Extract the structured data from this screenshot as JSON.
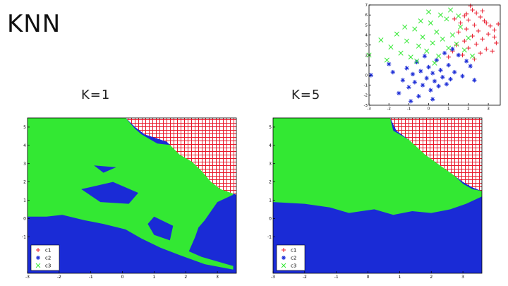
{
  "slide": {
    "title": "KNN",
    "k1_label": "K=1",
    "k5_label": "K=5"
  },
  "colors": {
    "c1": "#e8182a",
    "c2": "#1a2bd6",
    "c3": "#33e833"
  },
  "legend": {
    "items": [
      "c1",
      "c2",
      "c3"
    ],
    "placement": "bottom-left"
  },
  "chart_data": [
    {
      "type": "scatter",
      "xlim": [
        -3,
        3.6
      ],
      "ylim": [
        -3,
        7
      ],
      "xticks": [
        "-3",
        "-2",
        "-1",
        "0",
        "1",
        "2",
        "3"
      ],
      "yticks": [
        "-3",
        "-2",
        "-1",
        "0",
        "1",
        "2",
        "3",
        "4",
        "5",
        "6",
        "7"
      ],
      "series": [
        {
          "name": "c1",
          "marker": "+",
          "color": "#e8182a",
          "points": [
            [
              2.1,
              6.9
            ],
            [
              2.2,
              6.5
            ],
            [
              2.4,
              6.2
            ],
            [
              1.8,
              5.9
            ],
            [
              2.6,
              5.8
            ],
            [
              2.0,
              5.5
            ],
            [
              1.6,
              5.2
            ],
            [
              2.3,
              5.0
            ],
            [
              2.8,
              5.4
            ],
            [
              3.1,
              4.9
            ],
            [
              1.9,
              4.6
            ],
            [
              2.5,
              4.4
            ],
            [
              3.0,
              4.1
            ],
            [
              1.5,
              4.3
            ],
            [
              2.2,
              3.9
            ],
            [
              2.7,
              3.6
            ],
            [
              3.3,
              3.8
            ],
            [
              1.8,
              3.4
            ],
            [
              2.4,
              3.1
            ],
            [
              3.4,
              3.2
            ],
            [
              1.4,
              3.0
            ],
            [
              2.0,
              2.7
            ],
            [
              2.9,
              2.6
            ],
            [
              1.2,
              2.4
            ],
            [
              2.6,
              2.2
            ],
            [
              3.2,
              2.4
            ],
            [
              1.7,
              2.0
            ],
            [
              2.3,
              1.6
            ],
            [
              1.0,
              1.8
            ],
            [
              2.9,
              5.2
            ],
            [
              3.3,
              4.5
            ],
            [
              1.3,
              5.6
            ],
            [
              2.7,
              6.4
            ],
            [
              1.9,
              6.1
            ],
            [
              3.5,
              5.1
            ]
          ]
        },
        {
          "name": "c2",
          "marker": "*",
          "color": "#1a2bd6",
          "points": [
            [
              -2.9,
              0.0
            ],
            [
              -2.0,
              1.1
            ],
            [
              -1.8,
              0.3
            ],
            [
              -1.5,
              -1.8
            ],
            [
              -1.3,
              -0.5
            ],
            [
              -1.1,
              0.7
            ],
            [
              -1.0,
              -1.2
            ],
            [
              -0.8,
              0.1
            ],
            [
              -0.7,
              -0.7
            ],
            [
              -0.6,
              1.3
            ],
            [
              -0.5,
              -2.1
            ],
            [
              -0.4,
              0.4
            ],
            [
              -0.3,
              -1.0
            ],
            [
              -0.2,
              1.9
            ],
            [
              -0.1,
              -0.3
            ],
            [
              0.0,
              0.8
            ],
            [
              0.1,
              -1.5
            ],
            [
              0.2,
              0.2
            ],
            [
              0.3,
              -0.6
            ],
            [
              0.4,
              1.5
            ],
            [
              0.5,
              -1.1
            ],
            [
              0.6,
              0.5
            ],
            [
              0.7,
              -0.2
            ],
            [
              0.8,
              2.2
            ],
            [
              0.9,
              -0.9
            ],
            [
              1.0,
              1.0
            ],
            [
              1.1,
              -0.4
            ],
            [
              1.3,
              0.3
            ],
            [
              1.5,
              2.0
            ],
            [
              1.7,
              -0.1
            ],
            [
              1.9,
              1.4
            ],
            [
              2.1,
              0.9
            ],
            [
              2.3,
              -0.5
            ],
            [
              -0.9,
              -2.6
            ],
            [
              0.2,
              -2.4
            ],
            [
              1.2,
              2.6
            ]
          ]
        },
        {
          "name": "c3",
          "marker": "x",
          "color": "#33e833",
          "points": [
            [
              -3.0,
              2.0
            ],
            [
              -2.4,
              3.5
            ],
            [
              -1.9,
              2.8
            ],
            [
              -1.6,
              4.1
            ],
            [
              -1.4,
              2.2
            ],
            [
              -1.1,
              3.4
            ],
            [
              -0.9,
              1.8
            ],
            [
              -0.7,
              4.6
            ],
            [
              -0.5,
              2.9
            ],
            [
              -0.3,
              3.8
            ],
            [
              -0.1,
              2.4
            ],
            [
              0.1,
              5.2
            ],
            [
              0.2,
              3.2
            ],
            [
              0.4,
              4.3
            ],
            [
              0.5,
              1.9
            ],
            [
              0.7,
              3.6
            ],
            [
              0.9,
              5.6
            ],
            [
              1.0,
              2.7
            ],
            [
              1.2,
              4.0
            ],
            [
              1.4,
              3.1
            ],
            [
              1.6,
              4.8
            ],
            [
              1.8,
              2.5
            ],
            [
              2.0,
              3.7
            ],
            [
              2.2,
              1.9
            ],
            [
              0.0,
              6.3
            ],
            [
              -0.4,
              5.4
            ],
            [
              0.6,
              6.0
            ],
            [
              1.1,
              6.5
            ],
            [
              -1.2,
              4.8
            ],
            [
              -2.1,
              1.5
            ],
            [
              1.5,
              5.9
            ],
            [
              0.3,
              1.2
            ],
            [
              -0.6,
              1.4
            ]
          ]
        }
      ]
    },
    {
      "type": "heatmap",
      "title": "K=1",
      "xlim": [
        -3,
        3.6
      ],
      "ylim": [
        -3,
        5.5
      ],
      "xticks": [
        "-3",
        "-2",
        "-1",
        "0",
        "1",
        "2",
        "3"
      ],
      "yticks": [
        "-1",
        "0",
        "1",
        "2",
        "3",
        "4",
        "5"
      ],
      "regions": {
        "c3": [
          [
            [
              -3,
              5.5
            ],
            [
              0.1,
              5.5
            ],
            [
              0.4,
              4.9
            ],
            [
              0.6,
              4.6
            ],
            [
              1.1,
              4.1
            ],
            [
              1.6,
              4.0
            ],
            [
              1.9,
              3.4
            ],
            [
              2.4,
              3.0
            ],
            [
              2.6,
              2.6
            ],
            [
              2.9,
              2.0
            ],
            [
              3.2,
              1.6
            ],
            [
              3.5,
              1.4
            ],
            [
              3.5,
              1.3
            ],
            [
              3.0,
              0.9
            ],
            [
              2.8,
              0.4
            ],
            [
              2.6,
              -0.1
            ],
            [
              2.4,
              -0.5
            ],
            [
              2.3,
              -1.0
            ],
            [
              2.2,
              -1.4
            ],
            [
              2.1,
              -1.8
            ],
            [
              2.5,
              -2.1
            ],
            [
              3.3,
              -2.5
            ],
            [
              3.5,
              -2.6
            ],
            [
              3.5,
              -2.8
            ],
            [
              2.6,
              -2.5
            ],
            [
              1.8,
              -2.0
            ],
            [
              1.2,
              -1.6
            ],
            [
              0.6,
              -1.1
            ],
            [
              0.1,
              -0.6
            ],
            [
              -0.6,
              -0.3
            ],
            [
              -1.2,
              -0.1
            ],
            [
              -1.9,
              0.2
            ],
            [
              -2.4,
              0.1
            ],
            [
              -3,
              0.1
            ]
          ]
        ],
        "c1": [
          [
            [
              0.1,
              5.5
            ],
            [
              3.6,
              5.5
            ],
            [
              3.6,
              1.3
            ],
            [
              3.1,
              1.6
            ],
            [
              2.8,
              2.0
            ],
            [
              2.5,
              2.6
            ],
            [
              2.2,
              3.1
            ],
            [
              1.8,
              3.5
            ],
            [
              1.4,
              4.2
            ],
            [
              0.7,
              4.6
            ],
            [
              0.4,
              5.0
            ]
          ],
          [
            [
              2.7,
              4.4
            ],
            [
              3.1,
              4.4
            ],
            [
              3.1,
              3.9
            ],
            [
              2.6,
              3.8
            ]
          ]
        ],
        "c2_islands": [
          [
            [
              -1.3,
              1.6
            ],
            [
              -0.3,
              2.0
            ],
            [
              0.5,
              1.4
            ],
            [
              0.2,
              0.8
            ],
            [
              -0.7,
              0.9
            ]
          ],
          [
            [
              1.0,
              0.1
            ],
            [
              1.6,
              -0.4
            ],
            [
              1.5,
              -1.2
            ],
            [
              1.0,
              -0.9
            ],
            [
              0.8,
              -0.3
            ]
          ],
          [
            [
              -0.9,
              2.9
            ],
            [
              -0.2,
              2.8
            ],
            [
              -0.6,
              2.5
            ]
          ]
        ]
      }
    },
    {
      "type": "heatmap",
      "title": "K=5",
      "xlim": [
        -3,
        3.6
      ],
      "ylim": [
        -3,
        5.5
      ],
      "xticks": [
        "-3",
        "-2",
        "-1",
        "0",
        "1",
        "2",
        "3"
      ],
      "yticks": [
        "-1",
        "0",
        "1",
        "2",
        "3",
        "4",
        "5"
      ],
      "regions": {
        "c3": [
          [
            [
              -3,
              5.5
            ],
            [
              0.7,
              5.5
            ],
            [
              0.8,
              4.8
            ],
            [
              1.3,
              4.3
            ],
            [
              1.7,
              3.9
            ],
            [
              2.0,
              3.4
            ],
            [
              2.4,
              2.9
            ],
            [
              2.7,
              2.4
            ],
            [
              3.0,
              1.9
            ],
            [
              3.3,
              1.6
            ],
            [
              3.6,
              1.5
            ],
            [
              3.6,
              1.2
            ],
            [
              3.1,
              0.8
            ],
            [
              2.6,
              0.5
            ],
            [
              2.0,
              0.3
            ],
            [
              1.4,
              0.4
            ],
            [
              0.8,
              0.2
            ],
            [
              0.2,
              0.5
            ],
            [
              -0.6,
              0.3
            ],
            [
              -1.2,
              0.6
            ],
            [
              -2.0,
              0.8
            ],
            [
              -3,
              0.9
            ]
          ]
        ],
        "c1": [
          [
            [
              0.7,
              5.5
            ],
            [
              3.6,
              5.5
            ],
            [
              3.6,
              1.5
            ],
            [
              3.3,
              1.7
            ],
            [
              3.0,
              2.0
            ],
            [
              2.6,
              2.5
            ],
            [
              2.2,
              3.0
            ],
            [
              1.8,
              3.5
            ],
            [
              1.3,
              4.3
            ],
            [
              0.9,
              4.8
            ]
          ]
        ]
      }
    }
  ]
}
